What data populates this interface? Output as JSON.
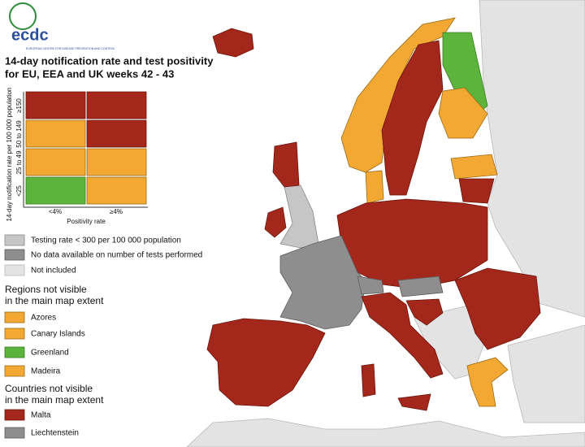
{
  "logo": {
    "name": "ecdc",
    "subtitle": "EUROPEAN CENTRE FOR DISEASE PREVENTION AND CONTROL"
  },
  "title": [
    "14-day notification rate and test positivity",
    "for EU, EEA and UK weeks 42 - 43"
  ],
  "matrix": {
    "y_label": "14-day notification rate per 100 000 population",
    "rows": [
      "≥150",
      "50 to 149",
      "25 to 49",
      "<25"
    ],
    "x_label": "Positivity rate",
    "columns": [
      "<4%",
      "≥4%"
    ]
  },
  "legend": [
    "Testing rate < 300 per 100 000 population",
    "No data available on number of tests performed",
    "Not included"
  ],
  "regions": {
    "heading": [
      "Regions not visible",
      "in the main map extent"
    ],
    "items": [
      "Azores",
      "Canary Islands",
      "Greenland",
      "Madeira"
    ]
  },
  "countries": {
    "heading": [
      "Countries not visible",
      "in the main map extent"
    ],
    "items": [
      "Malta",
      "Liechtenstein"
    ]
  }
}
